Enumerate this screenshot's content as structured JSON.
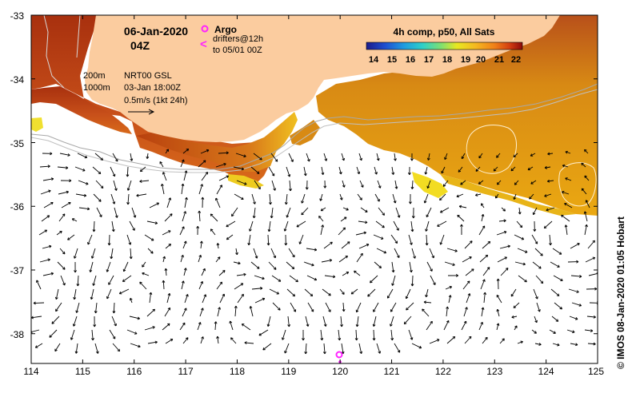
{
  "map": {
    "date_label": "06-Jan-2020",
    "time_label": "04Z",
    "product_label": "4h comp, p50, All Sats",
    "credit_label": "© IMOS 08-Jan-2020 01:05 Hobart",
    "depth_labels": [
      "200m",
      "1000m"
    ],
    "current_source": [
      "NRT00 GSL",
      "03-Jan 18:00Z",
      "0.5m/s (1kt 24h)"
    ],
    "argo_label": "Argo",
    "argo_icon": "magenta-circle-icon",
    "drifter_label_lines": [
      "drifters@12h",
      "to 05/01 00Z"
    ],
    "drifter_icon": "magenta-chevron-icon",
    "drifter_marker": "<",
    "colorbar": {
      "ticks": [
        "14",
        "15",
        "16",
        "17",
        "18",
        "19",
        "20",
        "21",
        "22"
      ],
      "colors": [
        "#1c1c8c",
        "#1f4fd0",
        "#1e9be0",
        "#2ed0c8",
        "#7fe070",
        "#e8e820",
        "#f5b820",
        "#f08018",
        "#d23c10",
        "#8c0a0a"
      ]
    },
    "axes": {
      "x_ticks": [
        "114",
        "115",
        "116",
        "117",
        "118",
        "119",
        "120",
        "121",
        "122",
        "123",
        "124",
        "125"
      ],
      "y_ticks": [
        "-33",
        "-34",
        "-35",
        "-36",
        "-37",
        "-38"
      ]
    },
    "colors": {
      "land": "#fbcc9f",
      "warm_sst": "#e8a312",
      "hot_sst": "#a8300e",
      "cool_sst": "#f0e020",
      "isobath": "#a0a0a0",
      "argo": "#ff22ff"
    }
  }
}
